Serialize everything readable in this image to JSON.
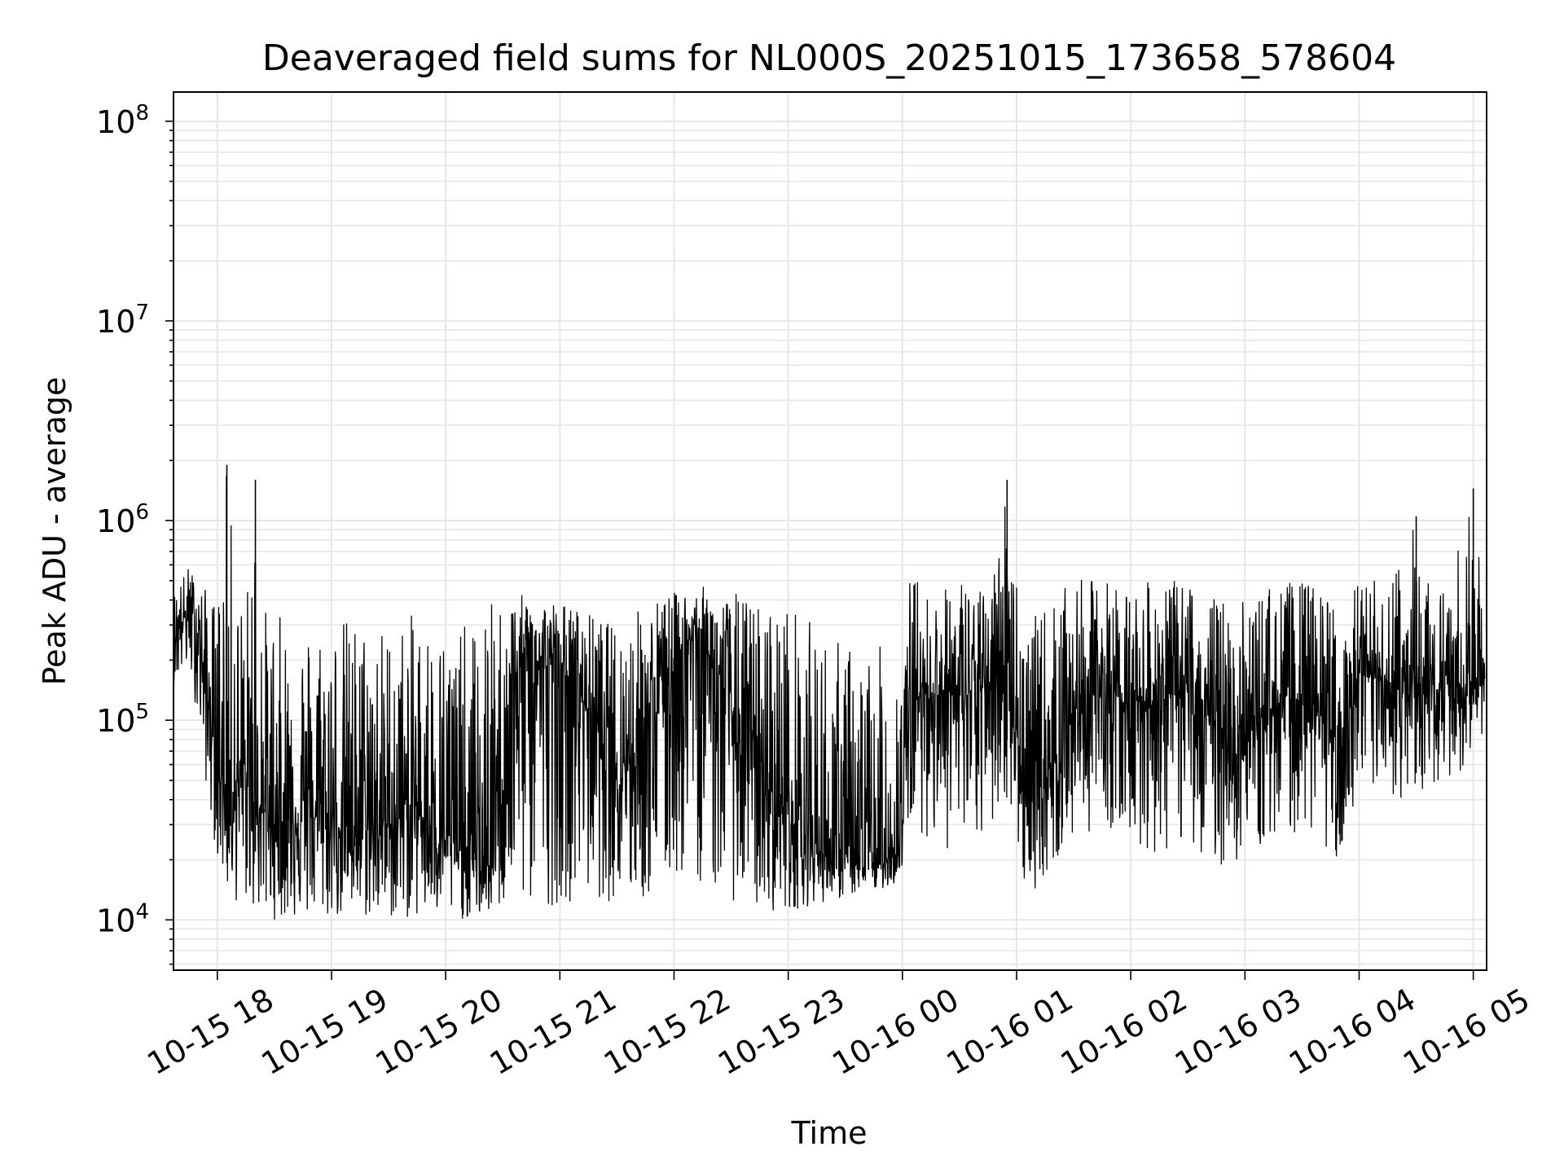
{
  "chart_data": {
    "type": "line",
    "title": "Deaveraged field sums for NL000S_20251015_173658_578604",
    "xlabel": "Time",
    "ylabel": "Peak ADU - average",
    "y_scale": "log",
    "ylim": [
      5600,
      140000000
    ],
    "xlim": [
      "2025-10-15 17:36:58",
      "2025-10-16 05:07:00"
    ],
    "grid": true,
    "line_color": "#000000",
    "grid_color": "#e6e6e6",
    "x_ticks": [
      "10-15 18",
      "10-15 19",
      "10-15 20",
      "10-15 21",
      "10-15 22",
      "10-15 23",
      "10-16 00",
      "10-16 01",
      "10-16 02",
      "10-16 03",
      "10-16 04",
      "10-16 05"
    ],
    "y_ticks": [
      {
        "base": "10",
        "exp": "4",
        "value": 10000
      },
      {
        "base": "10",
        "exp": "5",
        "value": 100000
      },
      {
        "base": "10",
        "exp": "6",
        "value": 1000000
      },
      {
        "base": "10",
        "exp": "7",
        "value": 10000000
      },
      {
        "base": "10",
        "exp": "8",
        "value": 100000000
      }
    ],
    "series": [
      {
        "style": "dense noisy line (approximate envelope, sampled)",
        "x": [
          "2025-10-15 17:37",
          "2025-10-15 17:40",
          "2025-10-15 17:45",
          "2025-10-15 17:50",
          "2025-10-15 17:55",
          "2025-10-15 18:00",
          "2025-10-15 18:05",
          "2025-10-15 18:10",
          "2025-10-15 18:15",
          "2025-10-15 18:20",
          "2025-10-15 18:25",
          "2025-10-15 18:30",
          "2025-10-15 18:45",
          "2025-10-15 19:00",
          "2025-10-15 19:15",
          "2025-10-15 19:30",
          "2025-10-15 19:45",
          "2025-10-15 20:00",
          "2025-10-15 20:15",
          "2025-10-15 20:25",
          "2025-10-15 20:35",
          "2025-10-15 20:45",
          "2025-10-15 21:00",
          "2025-10-15 21:15",
          "2025-10-15 21:30",
          "2025-10-15 21:45",
          "2025-10-15 21:55",
          "2025-10-15 22:05",
          "2025-10-15 22:15",
          "2025-10-15 22:25",
          "2025-10-15 22:35",
          "2025-10-15 22:45",
          "2025-10-15 23:00",
          "2025-10-15 23:15",
          "2025-10-15 23:30",
          "2025-10-15 23:45",
          "2025-10-15 23:58",
          "2025-10-16 00:05",
          "2025-10-16 00:15",
          "2025-10-16 00:30",
          "2025-10-16 00:45",
          "2025-10-16 00:55",
          "2025-10-16 01:05",
          "2025-10-16 01:15",
          "2025-10-16 01:30",
          "2025-10-16 01:45",
          "2025-10-16 02:00",
          "2025-10-16 02:15",
          "2025-10-16 02:30",
          "2025-10-16 02:45",
          "2025-10-16 03:00",
          "2025-10-16 03:15",
          "2025-10-16 03:30",
          "2025-10-16 03:45",
          "2025-10-16 03:50",
          "2025-10-16 04:00",
          "2025-10-16 04:15",
          "2025-10-16 04:30",
          "2025-10-16 04:45",
          "2025-10-16 05:00",
          "2025-10-16 05:06"
        ],
        "y": [
          250000,
          300000,
          350000,
          280000,
          120000,
          60000,
          40000,
          50000,
          45000,
          40000,
          35000,
          30000,
          35000,
          30000,
          28000,
          30000,
          35000,
          25000,
          20000,
          18000,
          150000,
          200000,
          180000,
          120000,
          60000,
          80000,
          150000,
          250000,
          250000,
          150000,
          80000,
          50000,
          35000,
          22000,
          20000,
          18000,
          22000,
          120000,
          150000,
          130000,
          150000,
          250000,
          35000,
          50000,
          110000,
          150000,
          120000,
          130000,
          140000,
          90000,
          80000,
          120000,
          130000,
          90000,
          70000,
          170000,
          150000,
          130000,
          150000,
          140000,
          160000
        ],
        "upper": [
          450000,
          500000,
          600000,
          500000,
          450000,
          400000,
          1900000,
          500000,
          400000,
          1600000,
          380000,
          350000,
          300000,
          350000,
          330000,
          300000,
          350000,
          300000,
          300000,
          420000,
          420000,
          430000,
          400000,
          350000,
          300000,
          400000,
          430000,
          450000,
          470000,
          420000,
          450000,
          400000,
          400000,
          300000,
          250000,
          230000,
          260000,
          600000,
          400000,
          550000,
          420000,
          1600000,
          300000,
          380000,
          500000,
          520000,
          480000,
          500000,
          500000,
          420000,
          400000,
          500000,
          500000,
          450000,
          300000,
          520000,
          500000,
          1050000,
          450000,
          1450000,
          320000
        ],
        "lower": [
          150000,
          160000,
          180000,
          100000,
          40000,
          20000,
          14000,
          12000,
          12000,
          11000,
          10000,
          10000,
          10000,
          10000,
          10000,
          10000,
          10000,
          10000,
          10000,
          11000,
          11000,
          11000,
          12000,
          13000,
          12000,
          12000,
          14000,
          16000,
          15000,
          13000,
          12000,
          11000,
          11000,
          12000,
          13000,
          14000,
          15000,
          30000,
          25000,
          20000,
          25000,
          40000,
          13000,
          16000,
          25000,
          30000,
          25000,
          20000,
          25000,
          18000,
          20000,
          25000,
          28000,
          22000,
          18000,
          30000,
          40000,
          40000,
          50000,
          60000,
          90000
        ]
      }
    ]
  }
}
